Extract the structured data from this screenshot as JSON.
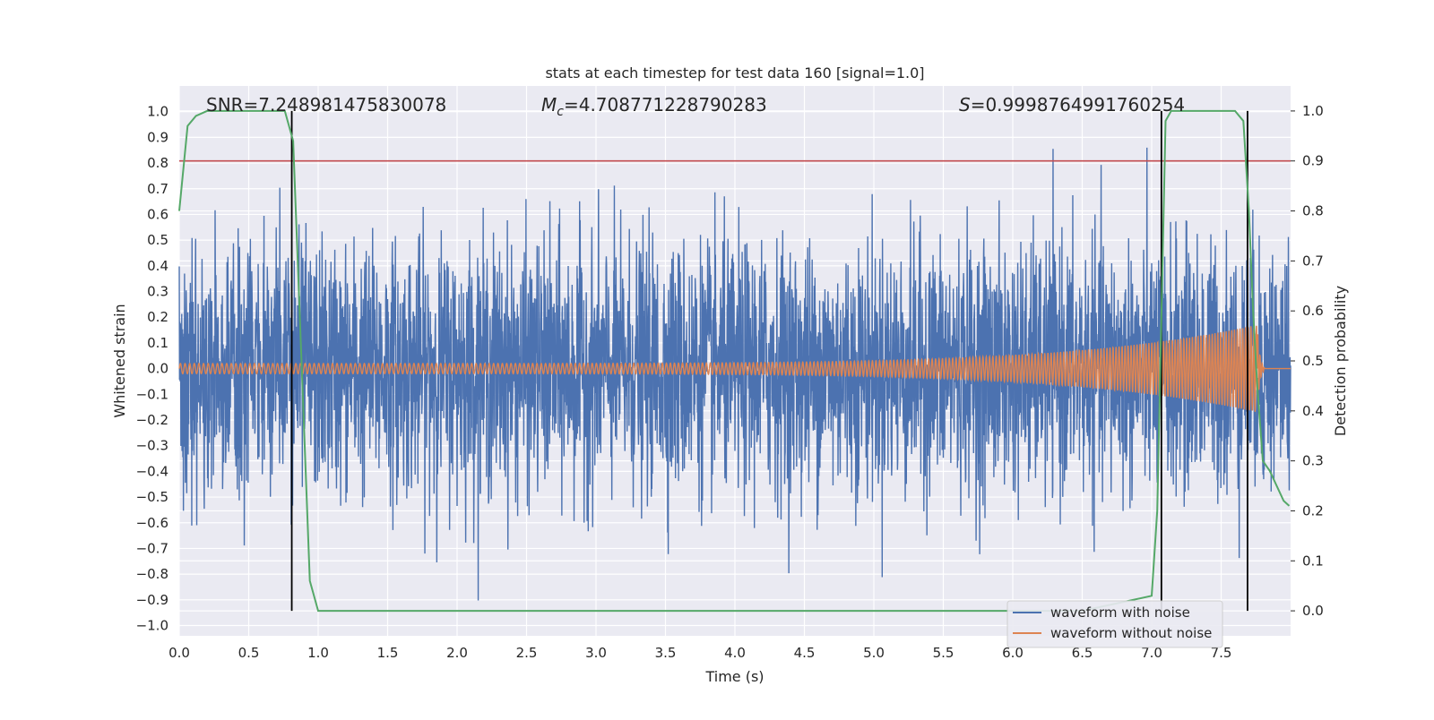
{
  "chart_data": {
    "type": "line",
    "title": "stats at each timestep for test data 160 [signal=1.0]",
    "xlabel": "Time (s)",
    "ylabel": "Whitened strain",
    "ylabel_right": "Detection probability",
    "xlim": [
      0.0,
      8.0
    ],
    "ylim": [
      -1.04,
      1.1
    ],
    "ylim_right": [
      -0.05,
      1.05
    ],
    "x_ticks": [
      "0.0",
      "0.5",
      "1.0",
      "1.5",
      "2.0",
      "2.5",
      "3.0",
      "3.5",
      "4.0",
      "4.5",
      "5.0",
      "5.5",
      "6.0",
      "6.5",
      "7.0",
      "7.5"
    ],
    "x_tick_values": [
      0.0,
      0.5,
      1.0,
      1.5,
      2.0,
      2.5,
      3.0,
      3.5,
      4.0,
      4.5,
      5.0,
      5.5,
      6.0,
      6.5,
      7.0,
      7.5
    ],
    "y_ticks": [
      "1.0",
      "0.9",
      "0.8",
      "0.7",
      "0.6",
      "0.5",
      "0.4",
      "0.3",
      "0.2",
      "0.1",
      "0.0",
      "−0.1",
      "−0.2",
      "−0.3",
      "−0.4",
      "−0.5",
      "−0.6",
      "−0.7",
      "−0.8",
      "−0.9",
      "−1.0"
    ],
    "y_tick_values": [
      1.0,
      0.9,
      0.8,
      0.7,
      0.6,
      0.5,
      0.4,
      0.3,
      0.2,
      0.1,
      0.0,
      -0.1,
      -0.2,
      -0.3,
      -0.4,
      -0.5,
      -0.6,
      -0.7,
      -0.8,
      -0.9,
      -1.0
    ],
    "y_ticks_right": [
      "1.0",
      "0.9",
      "0.8",
      "0.7",
      "0.6",
      "0.5",
      "0.4",
      "0.3",
      "0.2",
      "0.1",
      "0.0"
    ],
    "y_tick_values_right": [
      1.0,
      0.9,
      0.8,
      0.7,
      0.6,
      0.5,
      0.4,
      0.3,
      0.2,
      0.1,
      0.0
    ],
    "annotations": {
      "snr_label": "SNR=7.248981475830078",
      "mc_symbol": "M",
      "mc_sub": "c",
      "mc_value": "=4.708771228790283",
      "s_symbol": "S",
      "s_value": "=0.9998764991760254"
    },
    "threshold_right": 0.9,
    "vertical_lines_x": [
      0.81,
      7.07,
      7.69
    ],
    "detection_probability": {
      "x": [
        0.0,
        0.06,
        0.12,
        0.2,
        0.3,
        0.4,
        0.5,
        0.6,
        0.7,
        0.76,
        0.82,
        0.88,
        0.94,
        1.0,
        1.06,
        1.5,
        2.0,
        3.0,
        4.0,
        5.0,
        6.0,
        6.5,
        7.0,
        7.04,
        7.1,
        7.14,
        7.2,
        7.3,
        7.4,
        7.5,
        7.6,
        7.66,
        7.7,
        7.73,
        7.76,
        7.8,
        7.85,
        7.9,
        7.95,
        7.99
      ],
      "y": [
        0.8,
        0.97,
        0.99,
        1.0,
        1.0,
        1.0,
        1.0,
        1.0,
        1.0,
        1.0,
        0.94,
        0.5,
        0.06,
        0.0,
        0.0,
        0.0,
        0.0,
        0.0,
        0.0,
        0.0,
        0.0,
        0.0,
        0.03,
        0.2,
        0.98,
        1.0,
        1.0,
        1.0,
        1.0,
        1.0,
        1.0,
        0.98,
        0.8,
        0.6,
        0.45,
        0.3,
        0.28,
        0.25,
        0.22,
        0.21
      ]
    },
    "series": [
      {
        "name": "waveform with noise",
        "color": "#4c72b0",
        "noise_std": 0.24,
        "max_abs": 1.0
      },
      {
        "name": "waveform without noise",
        "color": "#dd8452",
        "amplitude_start": 0.02,
        "amplitude_end": 0.17,
        "merger_x": 7.76
      },
      {
        "color": "#55a868"
      }
    ],
    "colors": {
      "background": "#eaeaf2",
      "grid": "#ffffff",
      "threshold": "#c44e52",
      "vline": "#000000"
    },
    "grid": true,
    "legend_position": "lower-right"
  }
}
